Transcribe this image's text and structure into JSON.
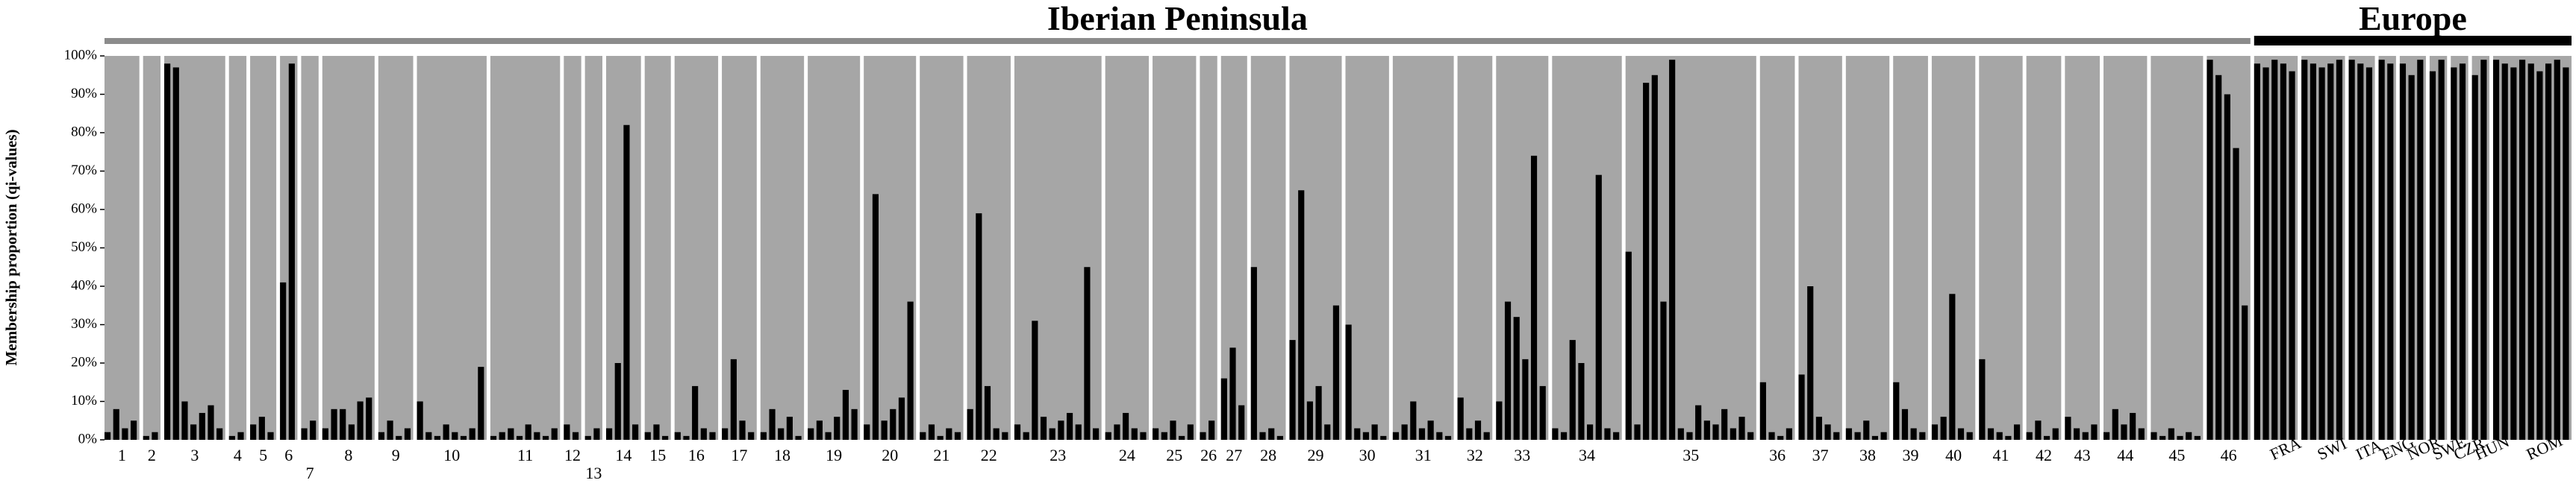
{
  "chart_data": {
    "type": "structure",
    "ylabel": "Membership proportion  (qi-values)",
    "ylim": [
      0,
      100
    ],
    "yticks": [
      {
        "value": 0,
        "label": "0%"
      },
      {
        "value": 10,
        "label": "10%"
      },
      {
        "value": 20,
        "label": "20%"
      },
      {
        "value": 30,
        "label": "30%"
      },
      {
        "value": 40,
        "label": "40%"
      },
      {
        "value": 50,
        "label": "50%"
      },
      {
        "value": 60,
        "label": "60%"
      },
      {
        "value": 70,
        "label": "70%"
      },
      {
        "value": 80,
        "label": "80%"
      },
      {
        "value": 90,
        "label": "90%"
      },
      {
        "value": 100,
        "label": "100%"
      }
    ],
    "bar_color": "#000000",
    "background_color": "#a6a6a6",
    "groups": [
      {
        "name": "Iberian Peninsula",
        "color": "#8c8c8c",
        "populations": [
          {
            "label": "1",
            "values": [
              2,
              8,
              3,
              5
            ]
          },
          {
            "label": "2",
            "values": [
              1,
              2
            ]
          },
          {
            "label": "3",
            "values": [
              98,
              97,
              10,
              4,
              7,
              9,
              3
            ]
          },
          {
            "label": "4",
            "values": [
              1,
              2
            ]
          },
          {
            "label": "5",
            "values": [
              4,
              6,
              2
            ]
          },
          {
            "label": "6",
            "values": [
              41,
              98
            ]
          },
          {
            "label": "7",
            "values": [
              3,
              5
            ]
          },
          {
            "label": "8",
            "values": [
              3,
              8,
              8,
              4,
              10,
              11
            ]
          },
          {
            "label": "9",
            "values": [
              2,
              5,
              1,
              3
            ]
          },
          {
            "label": "10",
            "values": [
              10,
              2,
              1,
              4,
              2,
              1,
              3,
              19
            ]
          },
          {
            "label": "11",
            "values": [
              1,
              2,
              3,
              1,
              4,
              2,
              1,
              3
            ]
          },
          {
            "label": "12",
            "values": [
              4,
              2
            ]
          },
          {
            "label": "13",
            "values": [
              1,
              3
            ]
          },
          {
            "label": "14",
            "values": [
              3,
              20,
              82,
              4
            ]
          },
          {
            "label": "15",
            "values": [
              2,
              4,
              1
            ]
          },
          {
            "label": "16",
            "values": [
              2,
              1,
              14,
              3,
              2
            ]
          },
          {
            "label": "17",
            "values": [
              3,
              21,
              5,
              2
            ]
          },
          {
            "label": "18",
            "values": [
              2,
              8,
              3,
              6,
              1
            ]
          },
          {
            "label": "19",
            "values": [
              3,
              5,
              2,
              6,
              13,
              8
            ]
          },
          {
            "label": "20",
            "values": [
              4,
              64,
              5,
              8,
              11,
              36
            ]
          },
          {
            "label": "21",
            "values": [
              2,
              4,
              1,
              3,
              2
            ]
          },
          {
            "label": "22",
            "values": [
              8,
              59,
              14,
              3,
              2
            ]
          },
          {
            "label": "23",
            "values": [
              4,
              2,
              31,
              6,
              3,
              5,
              7,
              4,
              45,
              3
            ]
          },
          {
            "label": "24",
            "values": [
              2,
              4,
              7,
              3,
              2
            ]
          },
          {
            "label": "25",
            "values": [
              3,
              2,
              5,
              1,
              4
            ]
          },
          {
            "label": "26",
            "values": [
              2,
              5
            ]
          },
          {
            "label": "27",
            "values": [
              16,
              24,
              9
            ]
          },
          {
            "label": "28",
            "values": [
              45,
              2,
              3,
              1
            ]
          },
          {
            "label": "29",
            "values": [
              26,
              65,
              10,
              14,
              4,
              35
            ]
          },
          {
            "label": "30",
            "values": [
              30,
              3,
              2,
              4,
              1
            ]
          },
          {
            "label": "31",
            "values": [
              2,
              4,
              10,
              3,
              5,
              2,
              1
            ]
          },
          {
            "label": "32",
            "values": [
              11,
              3,
              5,
              2
            ]
          },
          {
            "label": "33",
            "values": [
              10,
              36,
              32,
              21,
              74,
              14
            ]
          },
          {
            "label": "34",
            "values": [
              3,
              2,
              26,
              20,
              4,
              69,
              3,
              2
            ]
          },
          {
            "label": "35",
            "values": [
              49,
              4,
              93,
              95,
              36,
              99,
              3,
              2,
              9,
              5,
              4,
              8,
              3,
              6,
              2
            ]
          },
          {
            "label": "36",
            "values": [
              15,
              2,
              1,
              3
            ]
          },
          {
            "label": "37",
            "values": [
              17,
              40,
              6,
              4,
              2
            ]
          },
          {
            "label": "38",
            "values": [
              3,
              2,
              5,
              1,
              2
            ]
          },
          {
            "label": "39",
            "values": [
              15,
              8,
              3,
              2
            ]
          },
          {
            "label": "40",
            "values": [
              4,
              6,
              38,
              3,
              2
            ]
          },
          {
            "label": "41",
            "values": [
              21,
              3,
              2,
              1,
              4
            ]
          },
          {
            "label": "42",
            "values": [
              2,
              5,
              1,
              3
            ]
          },
          {
            "label": "43",
            "values": [
              6,
              3,
              2,
              4
            ]
          },
          {
            "label": "44",
            "values": [
              2,
              8,
              4,
              7,
              3
            ]
          },
          {
            "label": "45",
            "values": [
              2,
              1,
              3,
              1,
              2,
              1
            ]
          },
          {
            "label": "46",
            "values": [
              99,
              95,
              90,
              76,
              35
            ]
          }
        ]
      },
      {
        "name": "Europe",
        "color": "#000000",
        "populations": [
          {
            "label": "FRA",
            "values": [
              98,
              97,
              99,
              98,
              96
            ]
          },
          {
            "label": "SWI",
            "values": [
              99,
              98,
              97,
              98,
              99
            ]
          },
          {
            "label": "ITA",
            "values": [
              99,
              98,
              97
            ]
          },
          {
            "label": "ENG",
            "values": [
              99,
              98
            ]
          },
          {
            "label": "NOR",
            "values": [
              98,
              95,
              99
            ]
          },
          {
            "label": "SWE",
            "values": [
              96,
              99
            ]
          },
          {
            "label": "CZR",
            "values": [
              97,
              98
            ]
          },
          {
            "label": "HUN",
            "values": [
              95,
              99
            ]
          },
          {
            "label": "ROM",
            "values": [
              99,
              98,
              97,
              99,
              98,
              96,
              98,
              99,
              97
            ]
          }
        ]
      }
    ]
  }
}
